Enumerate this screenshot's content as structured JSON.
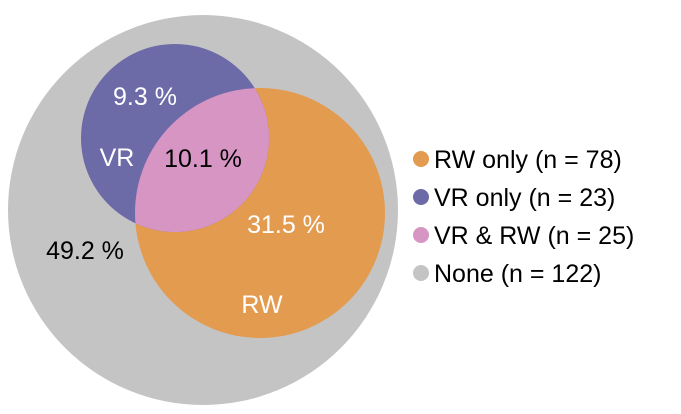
{
  "diagram": {
    "type": "venn",
    "regions": {
      "none": {
        "percent_label": "49.2 %",
        "color": "#C4C4C4"
      },
      "vr_only": {
        "percent_label": "9.3 %",
        "set_label": "VR",
        "color": "#6D6AA8"
      },
      "vr_rw": {
        "percent_label": "10.1 %",
        "color": "#D795C3"
      },
      "rw_only": {
        "percent_label": "31.5 %",
        "set_label": "RW",
        "color": "#E39B4F"
      }
    }
  },
  "legend": {
    "items": [
      {
        "label": "RW only (n = 78)",
        "color": "#E39B4F"
      },
      {
        "label": "VR only (n = 23)",
        "color": "#6D6AA8"
      },
      {
        "label": "VR & RW (n = 25)",
        "color": "#D795C3"
      },
      {
        "label": "None (n = 122)",
        "color": "#C4C4C4"
      }
    ]
  }
}
